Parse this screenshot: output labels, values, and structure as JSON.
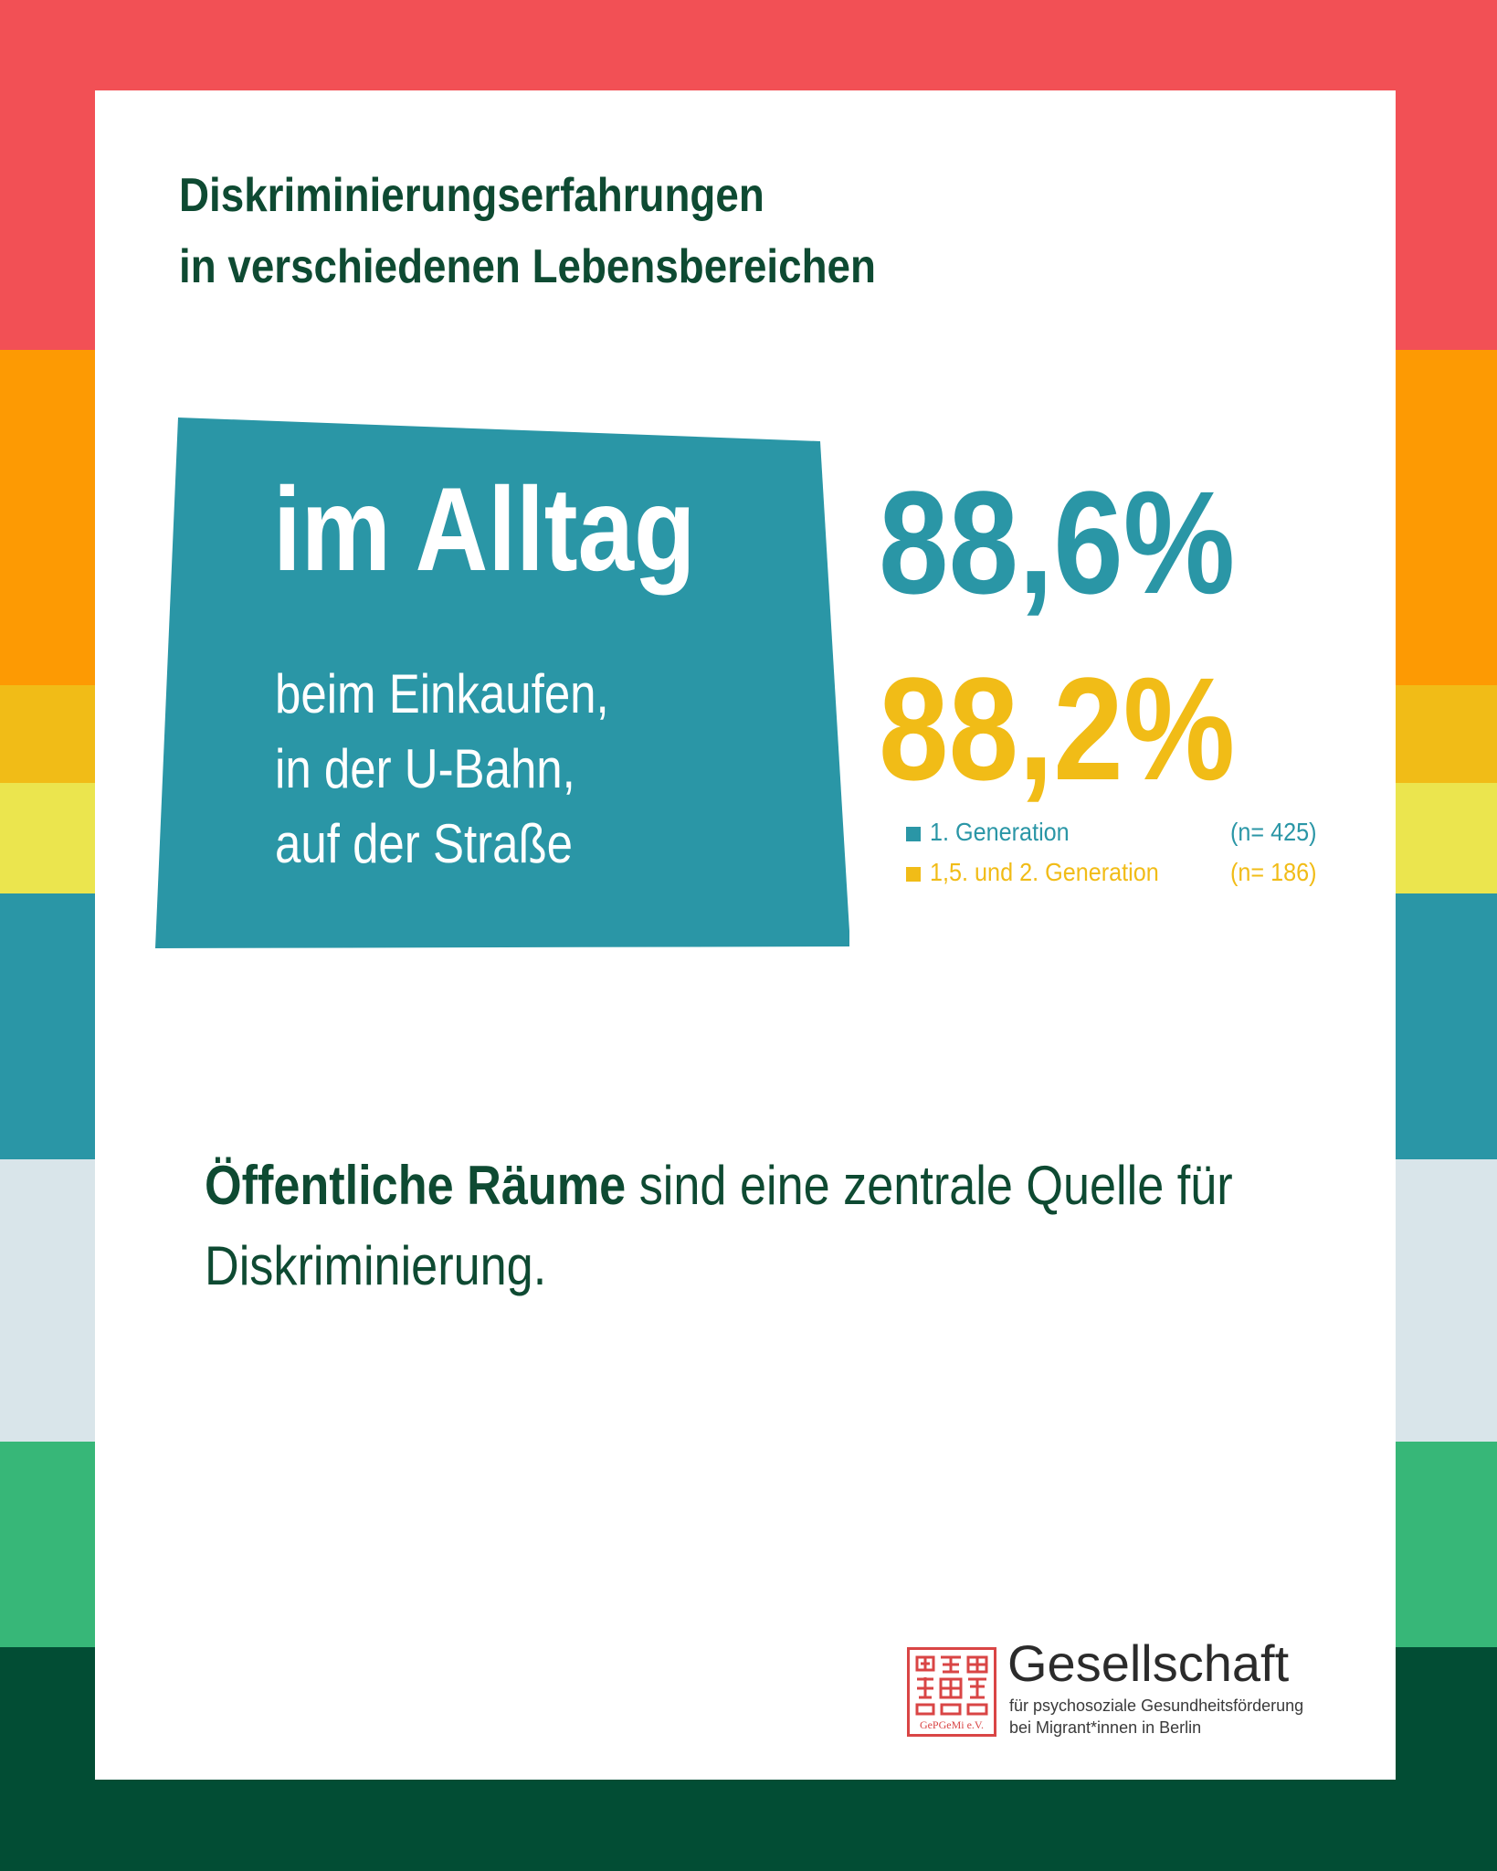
{
  "colors": {
    "stripes": [
      "#f25055",
      "#fd9a03",
      "#f1bc17",
      "#ebe54e",
      "#2a96a6",
      "#d9e5ea",
      "#37b778",
      "#024d34"
    ],
    "teal": "#2a96a6",
    "gold": "#f1bc17",
    "dark_green": "#0e4a32",
    "seal_red": "#d94545"
  },
  "header": {
    "line1": "Diskriminierungserfahrungen",
    "line2": "in verschiedenen Lebensbereichen"
  },
  "category": {
    "title": "im Alltag",
    "places": [
      "beim Einkaufen,",
      "in der U-Bahn,",
      "auf der Straße"
    ]
  },
  "stats": {
    "gen1_value": "88,6%",
    "gen2_value": "88,2%"
  },
  "legend": [
    {
      "label": "1.  Generation",
      "n": "(n= 425)",
      "color": "#2a96a6"
    },
    {
      "label": "1,5. und 2.  Generation",
      "n": "(n= 186)",
      "color": "#f1bc17"
    }
  ],
  "statement": {
    "bold": "Öffentliche Räume",
    "rest": " sind eine zentrale Quelle für Diskriminierung."
  },
  "logo": {
    "name": "Gesellschaft",
    "sub_line1": "für psychosoziale Gesundheitsförderung",
    "sub_line2": "bei Migrant*innen in Berlin",
    "seal_text": "GePGeMi e.V."
  }
}
